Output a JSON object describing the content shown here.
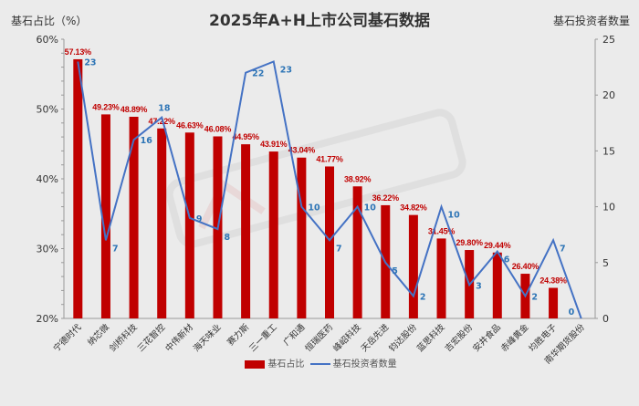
{
  "chart_data": {
    "type": "bar+line",
    "title": "2025年A+H上市公司基石数据",
    "ylabel_left": "基石占比（%）",
    "ylabel_right": "基石投资者数量",
    "categories": [
      "宁德时代",
      "纳芯微",
      "剑桥科技",
      "三花智控",
      "中伟新材",
      "海天味业",
      "赛力斯",
      "三一重工",
      "广和通",
      "恒瑞医药",
      "峰岹科技",
      "天岳先进",
      "钧达股份",
      "蓝思科技",
      "吉宏股份",
      "安井食品",
      "赤峰黄金",
      "均胜电子",
      "南华期货股份"
    ],
    "series": [
      {
        "name": "基石占比",
        "type": "bar",
        "axis": "left",
        "color": "#c00000",
        "values": [
          57.13,
          49.23,
          48.89,
          47.22,
          46.63,
          46.08,
          44.95,
          43.91,
          43.04,
          41.77,
          38.92,
          36.22,
          34.82,
          31.45,
          29.8,
          29.44,
          26.4,
          24.38,
          null
        ],
        "labels": [
          "57.13%",
          "49.23%",
          "48.89%",
          "47.22%",
          "46.63%",
          "46.08%",
          "44.95%",
          "43.91%",
          "43.04%",
          "41.77%",
          "38.92%",
          "36.22%",
          "34.82%",
          "31.45%",
          "29.80%",
          "29.44%",
          "26.40%",
          "24.38%",
          ""
        ]
      },
      {
        "name": "基石投资者数量",
        "type": "line",
        "axis": "right",
        "color": "#4472c4",
        "label_color": "#2e75b6",
        "values": [
          23,
          7,
          16,
          18,
          9,
          8,
          22,
          23,
          10,
          7,
          10,
          5,
          2,
          10,
          3,
          6,
          2,
          7,
          0
        ]
      }
    ],
    "ylim_left": [
      20,
      60
    ],
    "yticks_left": [
      "20%",
      "30%",
      "40%",
      "50%",
      "60%"
    ],
    "ylim_right": [
      0,
      25
    ],
    "yticks_right": [
      "0",
      "5",
      "10",
      "15",
      "20",
      "25"
    ],
    "grid": false,
    "legend": "bottom",
    "watermark": "乐报告 Le Report"
  }
}
